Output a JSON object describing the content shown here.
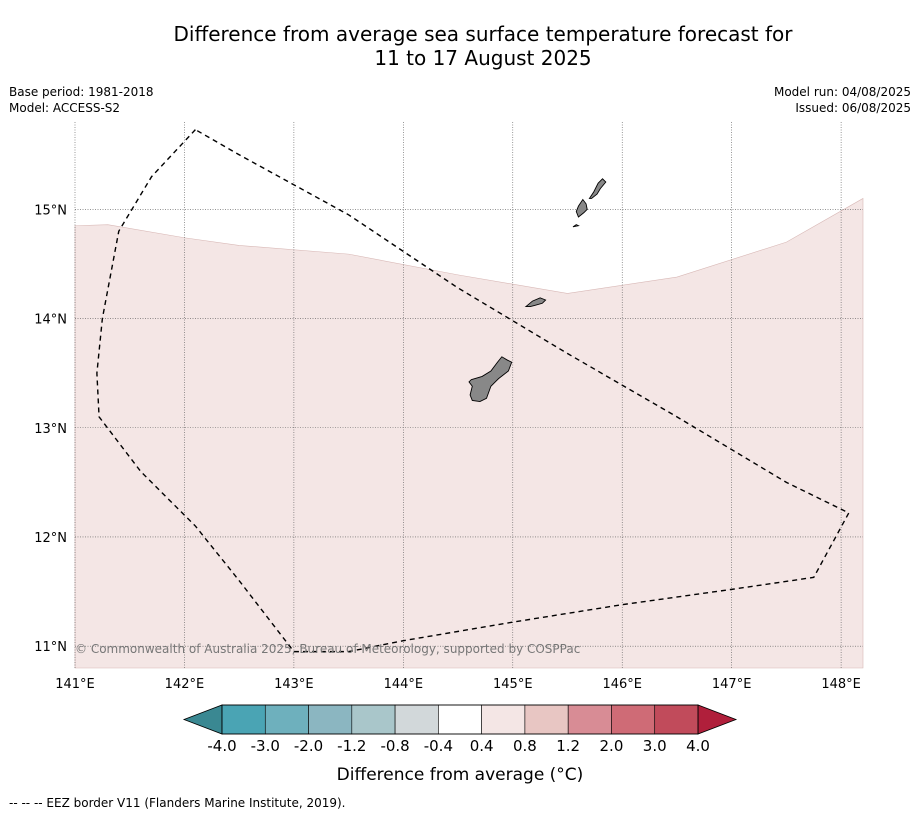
{
  "header": {
    "title_line1": "Difference from average sea surface temperature forecast for",
    "title_line2": "11 to 17 August 2025",
    "base_period": "Base period: 1981-2018",
    "model": "Model: ACCESS-S2",
    "model_run": "Model run: 04/08/2025",
    "issued": "Issued: 06/08/2025"
  },
  "credit": "© Commonwealth of Australia 2025, Bureau of Meteorology, supported by COSPPac",
  "footnote": "--  --  -- EEZ border V11 (Flanders Marine Institute, 2019).",
  "chart_data": {
    "type": "heatmap",
    "title": "Difference from average sea surface temperature forecast for 11 to 17 August 2025",
    "x_axis": {
      "range": [
        141.0,
        148.2
      ],
      "ticks": [
        141,
        142,
        143,
        144,
        145,
        146,
        147,
        148
      ],
      "tick_labels": [
        "141°E",
        "142°E",
        "143°E",
        "144°E",
        "145°E",
        "146°E",
        "147°E",
        "148°E"
      ]
    },
    "y_axis": {
      "range": [
        10.8,
        15.8
      ],
      "ticks": [
        11,
        12,
        13,
        14,
        15
      ],
      "tick_labels": [
        "11°N",
        "12°N",
        "13°N",
        "14°N",
        "15°N"
      ]
    },
    "grid": true,
    "anomaly_region": {
      "category": "0.4 to 0.8",
      "color": "#f4e6e5",
      "north_boundary": [
        [
          141.0,
          14.85
        ],
        [
          141.3,
          14.86
        ],
        [
          142.0,
          14.74
        ],
        [
          142.5,
          14.67
        ],
        [
          143.5,
          14.59
        ],
        [
          144.5,
          14.4
        ],
        [
          145.5,
          14.23
        ],
        [
          146.5,
          14.38
        ],
        [
          147.5,
          14.7
        ],
        [
          148.2,
          15.1
        ]
      ]
    },
    "islands": [
      {
        "name": "",
        "color": "#888888",
        "outline": [
          [
            144.62,
            13.44
          ],
          [
            144.72,
            13.47
          ],
          [
            144.8,
            13.52
          ],
          [
            144.86,
            13.6
          ],
          [
            144.9,
            13.65
          ],
          [
            144.95,
            13.62
          ],
          [
            144.99,
            13.6
          ],
          [
            144.96,
            13.52
          ],
          [
            144.87,
            13.45
          ],
          [
            144.8,
            13.38
          ],
          [
            144.76,
            13.27
          ],
          [
            144.7,
            13.24
          ],
          [
            144.63,
            13.25
          ],
          [
            144.61,
            13.3
          ],
          [
            144.63,
            13.38
          ],
          [
            144.6,
            13.42
          ]
        ]
      },
      {
        "name": "",
        "color": "#888888",
        "outline": [
          [
            145.12,
            14.11
          ],
          [
            145.18,
            14.16
          ],
          [
            145.25,
            14.19
          ],
          [
            145.3,
            14.17
          ],
          [
            145.27,
            14.14
          ],
          [
            145.2,
            14.12
          ],
          [
            145.16,
            14.11
          ]
        ]
      },
      {
        "name": "",
        "color": "#888888",
        "outline": [
          [
            145.6,
            14.93
          ],
          [
            145.65,
            14.97
          ],
          [
            145.68,
            15.0
          ],
          [
            145.67,
            15.05
          ],
          [
            145.64,
            15.09
          ],
          [
            145.6,
            15.03
          ],
          [
            145.58,
            14.98
          ]
        ]
      },
      {
        "name": "",
        "color": "#888888",
        "outline": [
          [
            145.7,
            15.1
          ],
          [
            145.74,
            15.16
          ],
          [
            145.78,
            15.24
          ],
          [
            145.82,
            15.28
          ],
          [
            145.85,
            15.25
          ],
          [
            145.8,
            15.19
          ],
          [
            145.77,
            15.14
          ],
          [
            145.72,
            15.1
          ]
        ]
      },
      {
        "name": "",
        "color": "#888888",
        "outline": [
          [
            145.55,
            14.84
          ],
          [
            145.58,
            14.86
          ],
          [
            145.6,
            14.85
          ]
        ]
      }
    ],
    "eez_border": [
      [
        142.1,
        15.73
      ],
      [
        141.7,
        15.3
      ],
      [
        141.4,
        14.8
      ],
      [
        141.25,
        14.0
      ],
      [
        141.2,
        13.5
      ],
      [
        141.22,
        13.1
      ],
      [
        141.6,
        12.6
      ],
      [
        142.1,
        12.1
      ],
      [
        142.5,
        11.6
      ],
      [
        143.0,
        10.95
      ],
      [
        143.5,
        10.95
      ],
      [
        144.0,
        11.05
      ],
      [
        145.0,
        11.22
      ],
      [
        146.0,
        11.38
      ],
      [
        147.0,
        11.52
      ],
      [
        147.75,
        11.63
      ],
      [
        148.07,
        12.22
      ],
      [
        147.5,
        12.5
      ],
      [
        146.5,
        13.1
      ],
      [
        145.5,
        13.68
      ],
      [
        144.5,
        14.28
      ],
      [
        143.5,
        14.95
      ],
      [
        142.5,
        15.5
      ],
      [
        142.1,
        15.73
      ]
    ],
    "colorbar": {
      "label": "Difference from average (°C)",
      "boundaries": [
        "-4.0",
        "-3.0",
        "-2.0",
        "-1.2",
        "-0.8",
        "-0.4",
        "0.4",
        "0.8",
        "1.2",
        "2.0",
        "3.0",
        "4.0"
      ],
      "colors": [
        "#4aa4b4",
        "#6eb0bd",
        "#8bb6c1",
        "#a9c6ca",
        "#d2d8da",
        "#ffffff",
        "#f4e6e5",
        "#e8c6c3",
        "#d88c95",
        "#cf6b76",
        "#c14b5b"
      ],
      "under_color": "#3a8892",
      "over_color": "#b01f3b"
    }
  }
}
